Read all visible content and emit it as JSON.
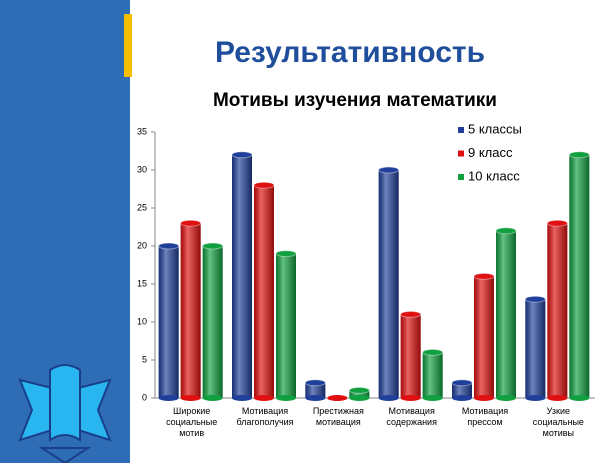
{
  "slide_title": "Результативность",
  "chart_data": {
    "type": "bar",
    "title": "Мотивы изучения математики",
    "categories": [
      "Широкие социальные мотив",
      "Мотивация благополучия",
      "Престижная мотивация",
      "Мотивация содержания",
      "Мотивация прессом",
      "Узкие социальные мотивы"
    ],
    "series": [
      {
        "name": "5 классы",
        "color": "#1f3f9a",
        "values": [
          20,
          32,
          2,
          30,
          2,
          13
        ]
      },
      {
        "name": "9 класс",
        "color": "#e01010",
        "values": [
          23,
          28,
          0,
          11,
          16,
          23
        ]
      },
      {
        "name": "10 класс",
        "color": "#10a040",
        "values": [
          20,
          19,
          1,
          6,
          22,
          32
        ]
      }
    ],
    "ylim": [
      0,
      35
    ],
    "yticks": [
      0,
      5,
      10,
      15,
      20,
      25,
      30,
      35
    ],
    "legend": "top-right"
  }
}
